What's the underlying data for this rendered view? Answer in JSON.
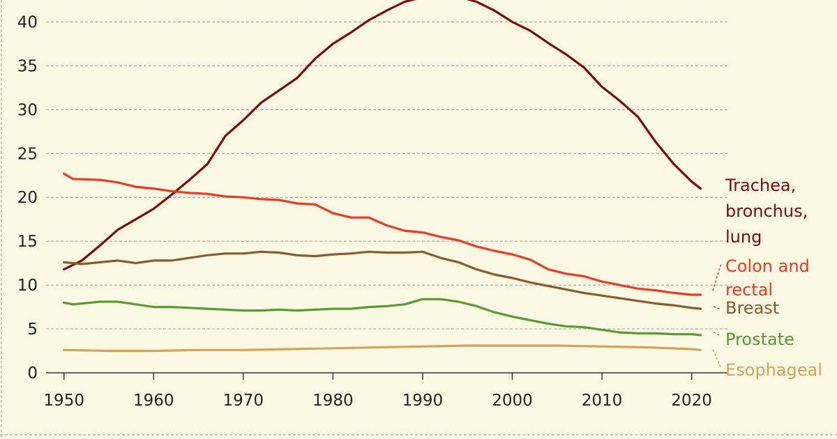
{
  "chart_data": {
    "type": "line",
    "title": "",
    "xlabel": "",
    "ylabel": "",
    "xlim": [
      1948,
      2024
    ],
    "ylim": [
      0,
      42.5
    ],
    "x_ticks": [
      1950,
      1960,
      1970,
      1980,
      1990,
      2000,
      2010,
      2020
    ],
    "y_ticks": [
      0,
      5,
      10,
      15,
      20,
      25,
      30,
      35,
      40
    ],
    "grid": "horizontal dashed",
    "legend": "direct labels at right end of lines",
    "series": [
      {
        "name": "Trachea, bronchus, lung",
        "label_lines": [
          "Trachea,",
          "bronchus,",
          "lung"
        ],
        "color": "#7a0b0b",
        "points": [
          [
            1950,
            11.8
          ],
          [
            1952,
            12.8
          ],
          [
            1954,
            14.5
          ],
          [
            1956,
            16.3
          ],
          [
            1958,
            17.5
          ],
          [
            1960,
            18.7
          ],
          [
            1962,
            20.3
          ],
          [
            1964,
            22.0
          ],
          [
            1966,
            23.8
          ],
          [
            1968,
            27.0
          ],
          [
            1970,
            28.8
          ],
          [
            1972,
            30.8
          ],
          [
            1974,
            32.2
          ],
          [
            1976,
            33.6
          ],
          [
            1978,
            35.8
          ],
          [
            1980,
            37.5
          ],
          [
            1982,
            38.8
          ],
          [
            1984,
            40.2
          ],
          [
            1986,
            41.3
          ],
          [
            1988,
            42.3
          ],
          [
            1990,
            42.8
          ],
          [
            1992,
            43.0
          ],
          [
            1994,
            42.9
          ],
          [
            1996,
            42.3
          ],
          [
            1998,
            41.3
          ],
          [
            2000,
            40.0
          ],
          [
            2002,
            39.0
          ],
          [
            2004,
            37.6
          ],
          [
            2006,
            36.3
          ],
          [
            2008,
            34.8
          ],
          [
            2010,
            32.6
          ],
          [
            2012,
            31.0
          ],
          [
            2014,
            29.2
          ],
          [
            2016,
            26.3
          ],
          [
            2018,
            23.8
          ],
          [
            2020,
            21.8
          ],
          [
            2021,
            21.0
          ]
        ]
      },
      {
        "name": "Colon and rectal",
        "label_lines": [
          "Colon and",
          "rectal"
        ],
        "color": "#e83a26",
        "points": [
          [
            1950,
            22.7
          ],
          [
            1951,
            22.1
          ],
          [
            1954,
            22.0
          ],
          [
            1956,
            21.7
          ],
          [
            1958,
            21.2
          ],
          [
            1960,
            21.0
          ],
          [
            1962,
            20.7
          ],
          [
            1964,
            20.5
          ],
          [
            1966,
            20.4
          ],
          [
            1968,
            20.1
          ],
          [
            1970,
            20.0
          ],
          [
            1972,
            19.8
          ],
          [
            1974,
            19.7
          ],
          [
            1976,
            19.3
          ],
          [
            1978,
            19.2
          ],
          [
            1980,
            18.2
          ],
          [
            1982,
            17.7
          ],
          [
            1984,
            17.7
          ],
          [
            1986,
            16.8
          ],
          [
            1988,
            16.2
          ],
          [
            1990,
            16.0
          ],
          [
            1992,
            15.5
          ],
          [
            1994,
            15.1
          ],
          [
            1996,
            14.4
          ],
          [
            1998,
            13.9
          ],
          [
            2000,
            13.5
          ],
          [
            2002,
            12.9
          ],
          [
            2004,
            11.8
          ],
          [
            2006,
            11.3
          ],
          [
            2008,
            11.0
          ],
          [
            2010,
            10.4
          ],
          [
            2012,
            10.0
          ],
          [
            2014,
            9.6
          ],
          [
            2016,
            9.4
          ],
          [
            2018,
            9.1
          ],
          [
            2020,
            8.9
          ],
          [
            2021,
            8.9
          ]
        ]
      },
      {
        "name": "Breast",
        "label_lines": [
          "Breast"
        ],
        "color": "#8a5a2b",
        "points": [
          [
            1950,
            12.6
          ],
          [
            1952,
            12.4
          ],
          [
            1954,
            12.6
          ],
          [
            1956,
            12.8
          ],
          [
            1958,
            12.5
          ],
          [
            1960,
            12.8
          ],
          [
            1962,
            12.8
          ],
          [
            1964,
            13.1
          ],
          [
            1966,
            13.4
          ],
          [
            1968,
            13.6
          ],
          [
            1970,
            13.6
          ],
          [
            1972,
            13.8
          ],
          [
            1974,
            13.7
          ],
          [
            1976,
            13.4
          ],
          [
            1978,
            13.3
          ],
          [
            1980,
            13.5
          ],
          [
            1982,
            13.6
          ],
          [
            1984,
            13.8
          ],
          [
            1986,
            13.7
          ],
          [
            1988,
            13.7
          ],
          [
            1990,
            13.8
          ],
          [
            1992,
            13.1
          ],
          [
            1994,
            12.6
          ],
          [
            1996,
            11.8
          ],
          [
            1998,
            11.2
          ],
          [
            2000,
            10.8
          ],
          [
            2002,
            10.3
          ],
          [
            2004,
            9.9
          ],
          [
            2006,
            9.5
          ],
          [
            2008,
            9.1
          ],
          [
            2010,
            8.8
          ],
          [
            2012,
            8.5
          ],
          [
            2014,
            8.2
          ],
          [
            2016,
            7.9
          ],
          [
            2018,
            7.7
          ],
          [
            2020,
            7.4
          ],
          [
            2021,
            7.3
          ]
        ]
      },
      {
        "name": "Prostate",
        "label_lines": [
          "Prostate"
        ],
        "color": "#5a9a32",
        "points": [
          [
            1950,
            8.0
          ],
          [
            1951,
            7.8
          ],
          [
            1954,
            8.1
          ],
          [
            1956,
            8.1
          ],
          [
            1958,
            7.8
          ],
          [
            1960,
            7.5
          ],
          [
            1962,
            7.5
          ],
          [
            1964,
            7.4
          ],
          [
            1966,
            7.3
          ],
          [
            1968,
            7.2
          ],
          [
            1970,
            7.1
          ],
          [
            1972,
            7.1
          ],
          [
            1974,
            7.2
          ],
          [
            1976,
            7.1
          ],
          [
            1978,
            7.2
          ],
          [
            1980,
            7.3
          ],
          [
            1982,
            7.3
          ],
          [
            1984,
            7.5
          ],
          [
            1986,
            7.6
          ],
          [
            1988,
            7.8
          ],
          [
            1990,
            8.4
          ],
          [
            1992,
            8.4
          ],
          [
            1994,
            8.1
          ],
          [
            1996,
            7.6
          ],
          [
            1998,
            6.9
          ],
          [
            2000,
            6.4
          ],
          [
            2002,
            6.0
          ],
          [
            2004,
            5.6
          ],
          [
            2006,
            5.3
          ],
          [
            2008,
            5.2
          ],
          [
            2010,
            4.9
          ],
          [
            2012,
            4.6
          ],
          [
            2014,
            4.5
          ],
          [
            2016,
            4.5
          ],
          [
            2018,
            4.4
          ],
          [
            2020,
            4.4
          ],
          [
            2021,
            4.3
          ]
        ]
      },
      {
        "name": "Esophageal",
        "label_lines": [
          "Esophageal"
        ],
        "color": "#d4a25a",
        "points": [
          [
            1950,
            2.6
          ],
          [
            1955,
            2.5
          ],
          [
            1960,
            2.5
          ],
          [
            1965,
            2.6
          ],
          [
            1970,
            2.6
          ],
          [
            1975,
            2.7
          ],
          [
            1980,
            2.8
          ],
          [
            1985,
            2.9
          ],
          [
            1990,
            3.0
          ],
          [
            1995,
            3.1
          ],
          [
            2000,
            3.1
          ],
          [
            2005,
            3.1
          ],
          [
            2010,
            3.0
          ],
          [
            2015,
            2.9
          ],
          [
            2020,
            2.7
          ],
          [
            2021,
            2.6
          ]
        ]
      }
    ]
  }
}
